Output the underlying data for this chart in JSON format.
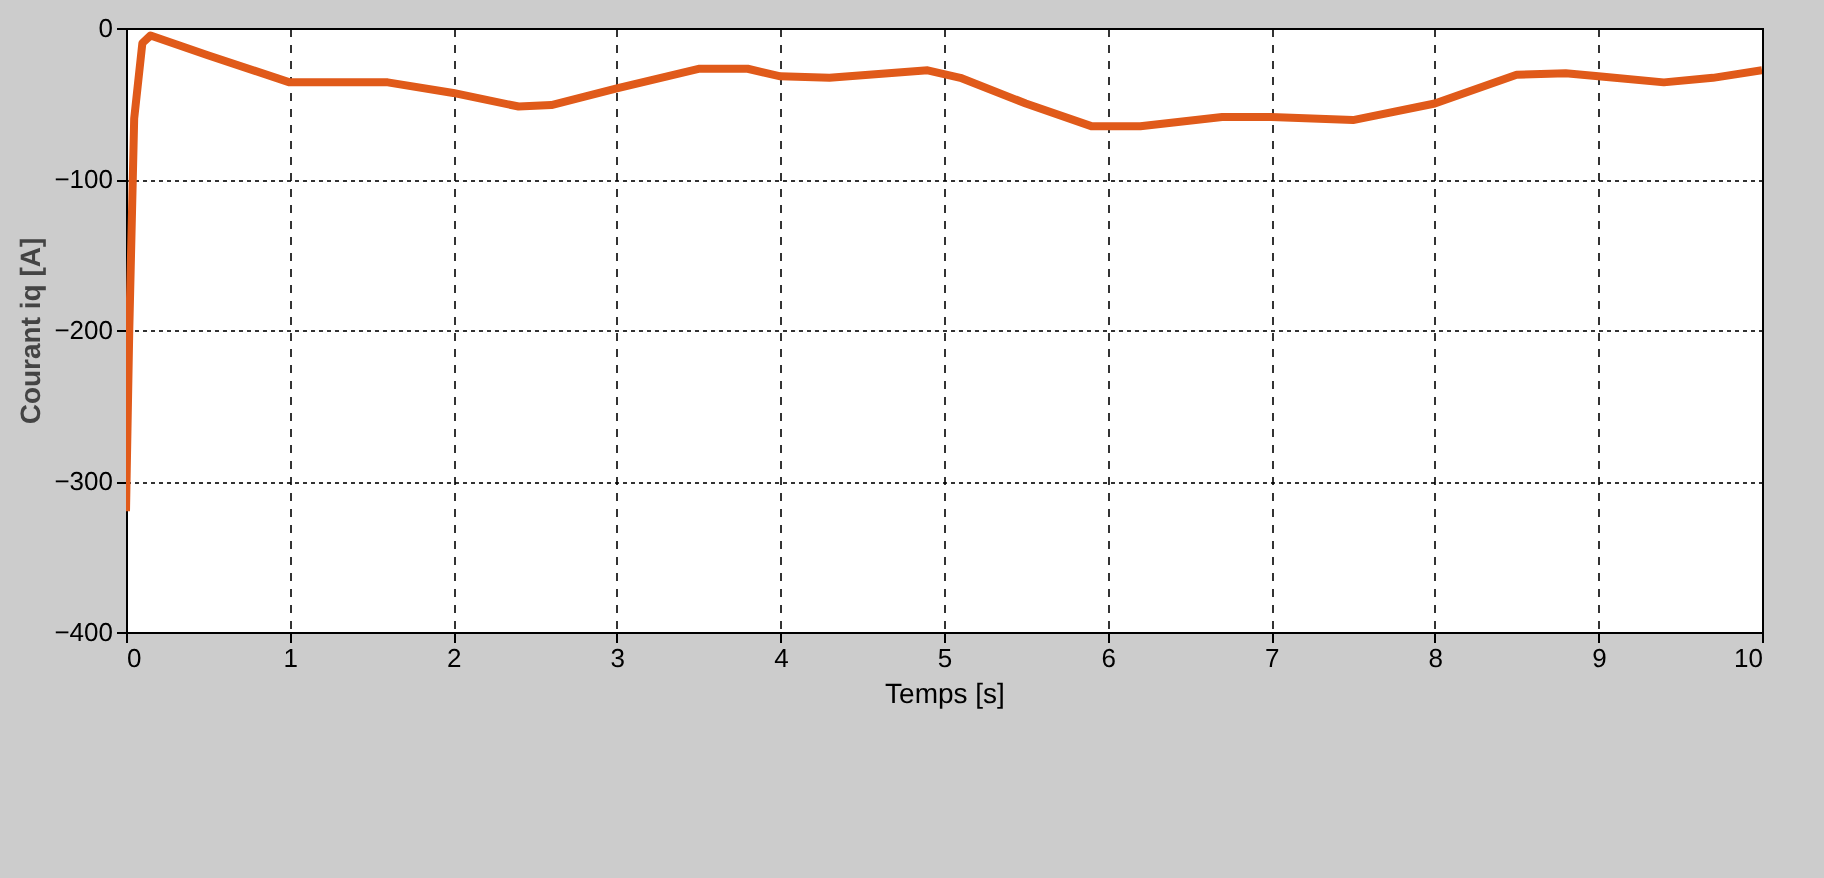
{
  "chart_data": {
    "type": "line",
    "xlabel": "Temps [s]",
    "ylabel": "Courant iq [A]",
    "xlim": [
      0,
      10
    ],
    "xticks": [
      0,
      1,
      2,
      3,
      4,
      5,
      6,
      7,
      8,
      9,
      10
    ],
    "ylim": [
      -400,
      0
    ],
    "yticks": [
      -400,
      -300,
      -200,
      -100,
      0
    ],
    "grid": true,
    "series": [
      {
        "color": "#e05a1a",
        "x": [
          0,
          0.02,
          0.05,
          0.1,
          0.15,
          0.5,
          1,
          1.6,
          2,
          2.4,
          2.6,
          3,
          3.5,
          3.8,
          4,
          4.3,
          4.9,
          5.1,
          5.5,
          5.9,
          6.2,
          6.7,
          7,
          7.5,
          8,
          8.5,
          8.8,
          9,
          9.4,
          9.7,
          10
        ],
        "values": [
          -320,
          -200,
          -60,
          -10,
          -5,
          -18,
          -36,
          -36,
          -43,
          -52,
          -51,
          -40,
          -27,
          -27,
          -32,
          -33,
          -28,
          -33,
          -50,
          -65,
          -65,
          -59,
          -59,
          -61,
          -50,
          -31,
          -30,
          -32,
          -36,
          -33,
          -28
        ]
      }
    ]
  }
}
